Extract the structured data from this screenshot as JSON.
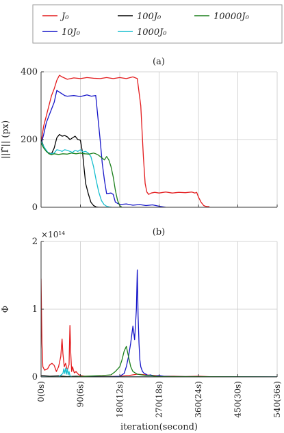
{
  "legend": {
    "entries": [
      {
        "label": "J₀",
        "color": "#e31a1c"
      },
      {
        "label": "10J₀",
        "color": "#1515c8"
      },
      {
        "label": "100J₀",
        "color": "#000000"
      },
      {
        "label": "1000J₀",
        "color": "#17becf"
      },
      {
        "label": "10000J₀",
        "color": "#1a7f1a"
      }
    ]
  },
  "chart_data": [
    {
      "type": "line",
      "panel_label": "(a)",
      "ylabel": "||Γ̃|| (px)",
      "xlim": [
        0,
        540
      ],
      "ylim": [
        0,
        400
      ],
      "yticks": [
        0,
        200,
        400
      ],
      "grid": true,
      "series": [
        {
          "name": "J₀",
          "color": "#e31a1c",
          "x": [
            0,
            6,
            12,
            18,
            24,
            30,
            36,
            42,
            48,
            60,
            75,
            90,
            105,
            120,
            135,
            150,
            165,
            180,
            195,
            210,
            220,
            228,
            234,
            238,
            242,
            246,
            252,
            260,
            270,
            285,
            300,
            315,
            330,
            345,
            352,
            356,
            360,
            366,
            372,
            376,
            380,
            385
          ],
          "y": [
            190,
            240,
            270,
            300,
            330,
            350,
            375,
            390,
            385,
            378,
            382,
            380,
            383,
            381,
            380,
            383,
            380,
            383,
            380,
            385,
            380,
            300,
            150,
            70,
            45,
            38,
            42,
            44,
            42,
            45,
            42,
            44,
            43,
            45,
            42,
            44,
            30,
            15,
            5,
            3,
            2,
            2
          ]
        },
        {
          "name": "10J₀",
          "color": "#1515c8",
          "x": [
            0,
            6,
            12,
            18,
            24,
            30,
            36,
            42,
            48,
            54,
            60,
            75,
            90,
            105,
            115,
            125,
            135,
            140,
            145,
            150,
            160,
            165,
            170,
            180,
            195,
            210,
            225,
            240,
            255,
            270,
            280,
            285
          ],
          "y": [
            185,
            215,
            250,
            270,
            290,
            310,
            345,
            340,
            335,
            330,
            328,
            330,
            327,
            332,
            328,
            330,
            200,
            130,
            80,
            40,
            42,
            38,
            15,
            8,
            10,
            6,
            8,
            5,
            7,
            3,
            1,
            0
          ]
        },
        {
          "name": "100J₀",
          "color": "#000000",
          "x": [
            0,
            6,
            12,
            18,
            24,
            30,
            36,
            42,
            48,
            54,
            60,
            66,
            72,
            78,
            84,
            90,
            95,
            98,
            102,
            108,
            114,
            120,
            126,
            132,
            138,
            144,
            150
          ],
          "y": [
            200,
            180,
            165,
            160,
            158,
            175,
            205,
            215,
            210,
            212,
            208,
            200,
            205,
            210,
            200,
            198,
            160,
            120,
            70,
            40,
            15,
            5,
            1,
            0,
            0,
            0,
            0
          ]
        },
        {
          "name": "1000J₀",
          "color": "#17becf",
          "x": [
            0,
            6,
            12,
            18,
            24,
            30,
            36,
            42,
            48,
            54,
            60,
            66,
            72,
            78,
            84,
            90,
            96,
            102,
            108,
            114,
            120,
            126,
            132,
            138,
            144,
            150,
            156,
            162
          ],
          "y": [
            195,
            180,
            168,
            158,
            158,
            160,
            170,
            168,
            165,
            170,
            168,
            165,
            162,
            168,
            165,
            170,
            163,
            165,
            160,
            150,
            120,
            80,
            45,
            20,
            8,
            3,
            1,
            0
          ]
        },
        {
          "name": "10000J₀",
          "color": "#1a7f1a",
          "x": [
            0,
            6,
            12,
            18,
            24,
            30,
            40,
            50,
            60,
            70,
            80,
            90,
            100,
            110,
            120,
            125,
            130,
            135,
            140,
            145,
            150,
            155,
            160,
            165,
            170,
            175,
            180,
            185
          ],
          "y": [
            190,
            175,
            165,
            158,
            155,
            158,
            156,
            158,
            157,
            160,
            158,
            160,
            158,
            157,
            160,
            158,
            155,
            150,
            145,
            140,
            150,
            140,
            120,
            90,
            50,
            20,
            5,
            0
          ]
        }
      ]
    },
    {
      "type": "line",
      "panel_label": "(b)",
      "ylabel": "Φ",
      "y_multiplier": "×10¹⁴",
      "xlabel": "iteration(second)",
      "xlim": [
        0,
        540
      ],
      "ylim": [
        0,
        2
      ],
      "yticks": [
        0,
        1,
        2
      ],
      "xticks": [
        0,
        90,
        180,
        270,
        360,
        450,
        540
      ],
      "xticklabels": [
        "0(0s)",
        "90(6s)",
        "180(12s)",
        "270(18s)",
        "360(24s)",
        "450(30s)",
        "540(36s)"
      ],
      "grid": true,
      "series": [
        {
          "name": "J₀",
          "color": "#e31a1c",
          "x": [
            0,
            1,
            2,
            4,
            8,
            15,
            20,
            25,
            30,
            35,
            40,
            45,
            48,
            50,
            53,
            56,
            60,
            64,
            66,
            68,
            70,
            72,
            74,
            76,
            80,
            85,
            90,
            100,
            120,
            150,
            180,
            200,
            220,
            240,
            260,
            280,
            300,
            330,
            360,
            380,
            400,
            540
          ],
          "y": [
            1.45,
            1.0,
            0.5,
            0.15,
            0.1,
            0.12,
            0.18,
            0.2,
            0.17,
            0.08,
            0.15,
            0.3,
            0.56,
            0.35,
            0.15,
            0.2,
            0.1,
            0.18,
            0.76,
            0.35,
            0.08,
            0.15,
            0.1,
            0.06,
            0.08,
            0.04,
            0.02,
            0.01,
            0.01,
            0.005,
            0.01,
            0.02,
            0.04,
            0.03,
            0.02,
            0.01,
            0.01,
            0.005,
            0.01,
            0.005,
            0.0,
            0.0
          ]
        },
        {
          "name": "10J₀",
          "color": "#1515c8",
          "x": [
            0,
            100,
            150,
            180,
            190,
            195,
            200,
            205,
            210,
            214,
            218,
            220,
            222,
            224,
            226,
            228,
            232,
            236,
            240,
            245,
            250,
            260,
            270,
            280,
            300,
            540
          ],
          "y": [
            0,
            0,
            0,
            0.01,
            0.05,
            0.15,
            0.3,
            0.5,
            0.75,
            0.55,
            1.0,
            1.58,
            0.9,
            0.5,
            0.25,
            0.15,
            0.08,
            0.05,
            0.04,
            0.02,
            0.03,
            0.01,
            0.02,
            0.01,
            0.005,
            0.0
          ]
        },
        {
          "name": "100J₀",
          "color": "#000000",
          "x": [
            0,
            20,
            40,
            60,
            80,
            100,
            120,
            140,
            160,
            180,
            200,
            250,
            300,
            350,
            400,
            450,
            500,
            540
          ],
          "y": [
            0.02,
            0.01,
            0.015,
            0.005,
            0.01,
            0.005,
            0.003,
            0.002,
            0.002,
            0.001,
            0.001,
            0.001,
            0.001,
            0.0,
            0.0,
            0.0,
            0.0,
            0.0
          ]
        },
        {
          "name": "1000J₀",
          "color": "#17becf",
          "x": [
            0,
            40,
            50,
            52,
            54,
            56,
            58,
            60,
            62,
            64,
            66,
            68,
            70,
            80,
            100,
            540
          ],
          "y": [
            0,
            0,
            0.05,
            0.12,
            0.05,
            0.13,
            0.04,
            0.12,
            0.03,
            0.08,
            0.02,
            0.01,
            0.0,
            0.0,
            0.0,
            0.0
          ]
        },
        {
          "name": "10000J₀",
          "color": "#1a7f1a",
          "x": [
            0,
            80,
            100,
            140,
            160,
            170,
            180,
            185,
            190,
            195,
            200,
            205,
            210,
            220,
            230,
            240,
            250,
            260,
            270,
            540
          ],
          "y": [
            0,
            0,
            0.01,
            0.02,
            0.03,
            0.08,
            0.15,
            0.25,
            0.38,
            0.45,
            0.3,
            0.15,
            0.08,
            0.04,
            0.03,
            0.02,
            0.02,
            0.01,
            0.005,
            0.0
          ]
        }
      ]
    }
  ]
}
